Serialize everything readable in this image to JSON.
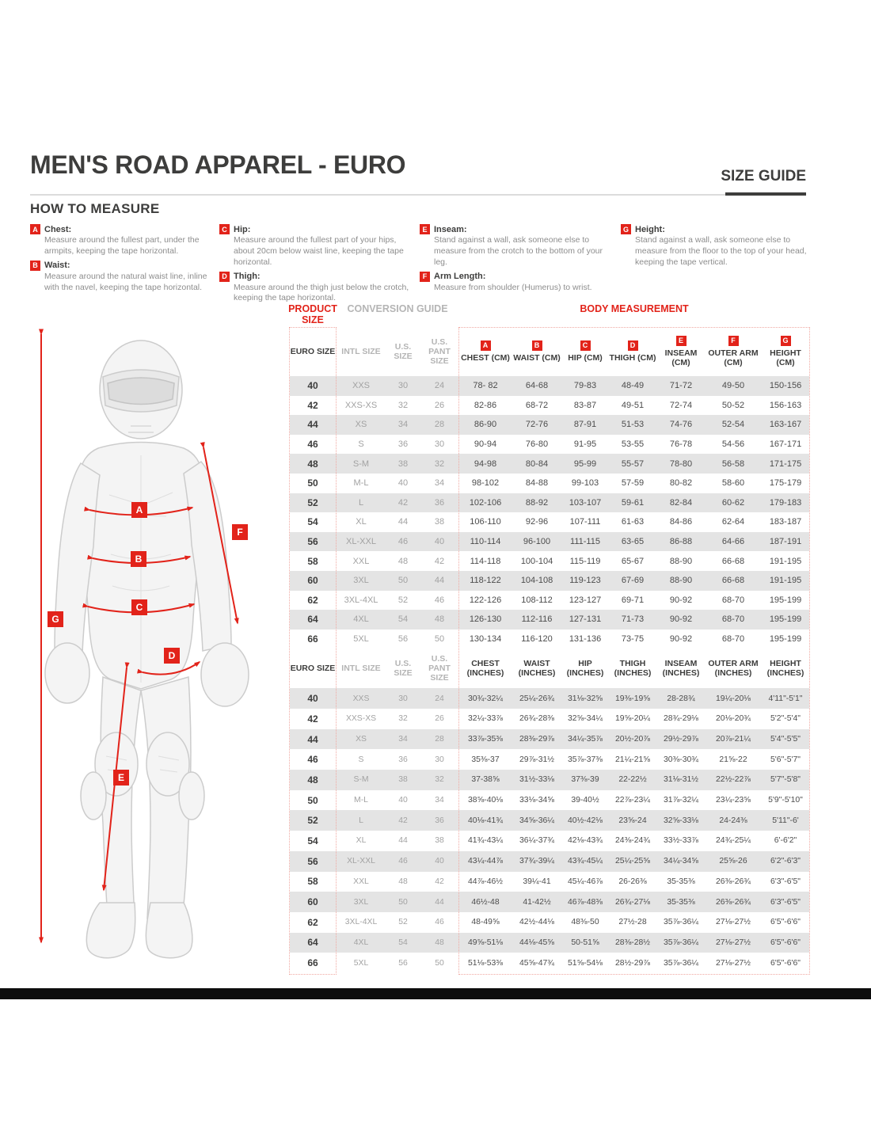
{
  "header": {
    "title": "MEN'S ROAD APPAREL - EURO",
    "size_guide": "SIZE GUIDE"
  },
  "how_to_measure": {
    "heading": "HOW TO MEASURE",
    "columns": [
      [
        {
          "letter": "A",
          "name": "Chest:",
          "text": "Measure around the fullest part, under the armpits, keeping the tape horizontal."
        },
        {
          "letter": "B",
          "name": "Waist:",
          "text": "Measure around the natural waist line, inline with the navel, keeping the tape horizontal."
        }
      ],
      [
        {
          "letter": "C",
          "name": "Hip:",
          "text": "Measure around the fullest part of your hips, about 20cm below waist line, keeping the tape horizontal."
        },
        {
          "letter": "D",
          "name": "Thigh:",
          "text": "Measure around the thigh just below the crotch, keeping the tape horizontal."
        }
      ],
      [
        {
          "letter": "E",
          "name": "Inseam:",
          "text": "Stand against a wall, ask someone else to measure from the crotch to the bottom of your leg."
        },
        {
          "letter": "F",
          "name": "Arm Length:",
          "text": "Measure from shoulder (Humerus) to wrist."
        }
      ],
      [
        {
          "letter": "G",
          "name": "Height:",
          "text": "Stand against a wall, ask someone else to measure from the floor to the top of your head, keeping the tape vertical."
        }
      ]
    ]
  },
  "figure": {
    "markers": [
      "A",
      "B",
      "C",
      "D",
      "E",
      "F",
      "G"
    ]
  },
  "table": {
    "group_product": "PRODUCT SIZE",
    "group_conversion": "CONVERSION GUIDE",
    "group_body": "BODY MEASUREMENT",
    "cm": {
      "headers": {
        "euro": "EURO SIZE",
        "intl": "INTL SIZE",
        "us": "U.S. SIZE",
        "pant": "U.S. PANT SIZE",
        "body": [
          {
            "letter": "A",
            "label": "CHEST (CM)"
          },
          {
            "letter": "B",
            "label": "WAIST (CM)"
          },
          {
            "letter": "C",
            "label": "HIP (CM)"
          },
          {
            "letter": "D",
            "label": "THIGH (CM)"
          },
          {
            "letter": "E",
            "label": "INSEAM (CM)"
          },
          {
            "letter": "F",
            "label": "OUTER ARM (CM)"
          },
          {
            "letter": "G",
            "label": "HEIGHT (CM)"
          }
        ]
      },
      "rows": [
        [
          "40",
          "XXS",
          "30",
          "24",
          "78- 82",
          "64-68",
          "79-83",
          "48-49",
          "71-72",
          "49-50",
          "150-156"
        ],
        [
          "42",
          "XXS-XS",
          "32",
          "26",
          "82-86",
          "68-72",
          "83-87",
          "49-51",
          "72-74",
          "50-52",
          "156-163"
        ],
        [
          "44",
          "XS",
          "34",
          "28",
          "86-90",
          "72-76",
          "87-91",
          "51-53",
          "74-76",
          "52-54",
          "163-167"
        ],
        [
          "46",
          "S",
          "36",
          "30",
          "90-94",
          "76-80",
          "91-95",
          "53-55",
          "76-78",
          "54-56",
          "167-171"
        ],
        [
          "48",
          "S-M",
          "38",
          "32",
          "94-98",
          "80-84",
          "95-99",
          "55-57",
          "78-80",
          "56-58",
          "171-175"
        ],
        [
          "50",
          "M-L",
          "40",
          "34",
          "98-102",
          "84-88",
          "99-103",
          "57-59",
          "80-82",
          "58-60",
          "175-179"
        ],
        [
          "52",
          "L",
          "42",
          "36",
          "102-106",
          "88-92",
          "103-107",
          "59-61",
          "82-84",
          "60-62",
          "179-183"
        ],
        [
          "54",
          "XL",
          "44",
          "38",
          "106-110",
          "92-96",
          "107-111",
          "61-63",
          "84-86",
          "62-64",
          "183-187"
        ],
        [
          "56",
          "XL-XXL",
          "46",
          "40",
          "110-114",
          "96-100",
          "111-115",
          "63-65",
          "86-88",
          "64-66",
          "187-191"
        ],
        [
          "58",
          "XXL",
          "48",
          "42",
          "114-118",
          "100-104",
          "115-119",
          "65-67",
          "88-90",
          "66-68",
          "191-195"
        ],
        [
          "60",
          "3XL",
          "50",
          "44",
          "118-122",
          "104-108",
          "119-123",
          "67-69",
          "88-90",
          "66-68",
          "191-195"
        ],
        [
          "62",
          "3XL-4XL",
          "52",
          "46",
          "122-126",
          "108-112",
          "123-127",
          "69-71",
          "90-92",
          "68-70",
          "195-199"
        ],
        [
          "64",
          "4XL",
          "54",
          "48",
          "126-130",
          "112-116",
          "127-131",
          "71-73",
          "90-92",
          "68-70",
          "195-199"
        ],
        [
          "66",
          "5XL",
          "56",
          "50",
          "130-134",
          "116-120",
          "131-136",
          "73-75",
          "90-92",
          "68-70",
          "195-199"
        ]
      ]
    },
    "inches": {
      "headers": {
        "euro": "EURO SIZE",
        "intl": "INTL SIZE",
        "us": "U.S. SIZE",
        "pant": "U.S. PANT SIZE",
        "body": [
          {
            "label": "CHEST (INCHES)"
          },
          {
            "label": "WAIST (INCHES)"
          },
          {
            "label": "HIP (INCHES)"
          },
          {
            "label": "THIGH (INCHES)"
          },
          {
            "label": "INSEAM (INCHES)"
          },
          {
            "label": "OUTER ARM (INCHES)"
          },
          {
            "label": "HEIGHT (INCHES)"
          }
        ]
      },
      "rows": [
        [
          "40",
          "XXS",
          "30",
          "24",
          "30¾-32¼",
          "25¼-26¾",
          "31⅛-32⅝",
          "19⅜-19⅝",
          "28-28¾",
          "19¼-20⅛",
          "4'11\"-5'1\""
        ],
        [
          "42",
          "XXS-XS",
          "32",
          "26",
          "32¼-33⅞",
          "26¾-28⅜",
          "32⅝-34¼",
          "19⅝-20¼",
          "28¾-29⅛",
          "20⅛-20¾",
          "5'2\"-5'4\""
        ],
        [
          "44",
          "XS",
          "34",
          "28",
          "33⅞-35⅜",
          "28⅜-29⅞",
          "34¼-35⅞",
          "20½-20⅞",
          "29½-29⅞",
          "20⅞-21¼",
          "5'4\"-5'5\""
        ],
        [
          "46",
          "S",
          "36",
          "30",
          "35⅜-37",
          "29⅞-31½",
          "35⅞-37⅜",
          "21¼-21⅝",
          "30⅜-30¾",
          "21⅝-22",
          "5'6\"-5'7\""
        ],
        [
          "48",
          "S-M",
          "38",
          "32",
          "37-38⅝",
          "31½-33⅛",
          "37⅜-39",
          "22-22½",
          "31⅛-31½",
          "22½-22⅞",
          "5'7\"-5'8\""
        ],
        [
          "50",
          "M-L",
          "40",
          "34",
          "38⅝-40⅛",
          "33⅛-34⅝",
          "39-40½",
          "22⅞-23¼",
          "31⅞-32¼",
          "23¼-23⅝",
          "5'9\"-5'10\""
        ],
        [
          "52",
          "L",
          "42",
          "36",
          "40⅛-41¾",
          "34⅝-36¼",
          "40½-42⅛",
          "23⅝-24",
          "32⅝-33⅛",
          "24-24⅜",
          "5'11\"-6'"
        ],
        [
          "54",
          "XL",
          "44",
          "38",
          "41¾-43¼",
          "36¼-37¾",
          "42⅛-43¾",
          "24⅜-24¾",
          "33½-33⅞",
          "24¾-25¼",
          "6'-6'2\""
        ],
        [
          "56",
          "XL-XXL",
          "46",
          "40",
          "43¼-44⅞",
          "37¾-39¼",
          "43¾-45¼",
          "25¼-25⅝",
          "34¼-34⅝",
          "25⅝-26",
          "6'2\"-6'3\""
        ],
        [
          "58",
          "XXL",
          "48",
          "42",
          "44⅞-46½",
          "39¼-41",
          "45¼-46⅞",
          "26-26⅜",
          "35-35⅜",
          "26⅜-26¾",
          "6'3\"-6'5\""
        ],
        [
          "60",
          "3XL",
          "50",
          "44",
          "46½-48",
          "41-42½",
          "46⅞-48⅜",
          "26¾-27⅛",
          "35-35⅜",
          "26⅜-26¾",
          "6'3\"-6'5\""
        ],
        [
          "62",
          "3XL-4XL",
          "52",
          "46",
          "48-49⅝",
          "42½-44⅛",
          "48⅜-50",
          "27½-28",
          "35⅞-36¼",
          "27⅛-27½",
          "6'5\"-6'6\""
        ],
        [
          "64",
          "4XL",
          "54",
          "48",
          "49⅝-51⅛",
          "44⅛-45⅝",
          "50-51⅝",
          "28⅜-28½",
          "35⅞-36¼",
          "27⅛-27½",
          "6'5\"-6'6\""
        ],
        [
          "66",
          "5XL",
          "56",
          "50",
          "51⅛-53⅜",
          "45⅝-47¾",
          "51⅝-54⅛",
          "28½-29⅞",
          "35⅞-36¼",
          "27⅛-27½",
          "6'5\"-6'6\""
        ]
      ]
    }
  },
  "colors": {
    "accent": "#e2231a"
  }
}
